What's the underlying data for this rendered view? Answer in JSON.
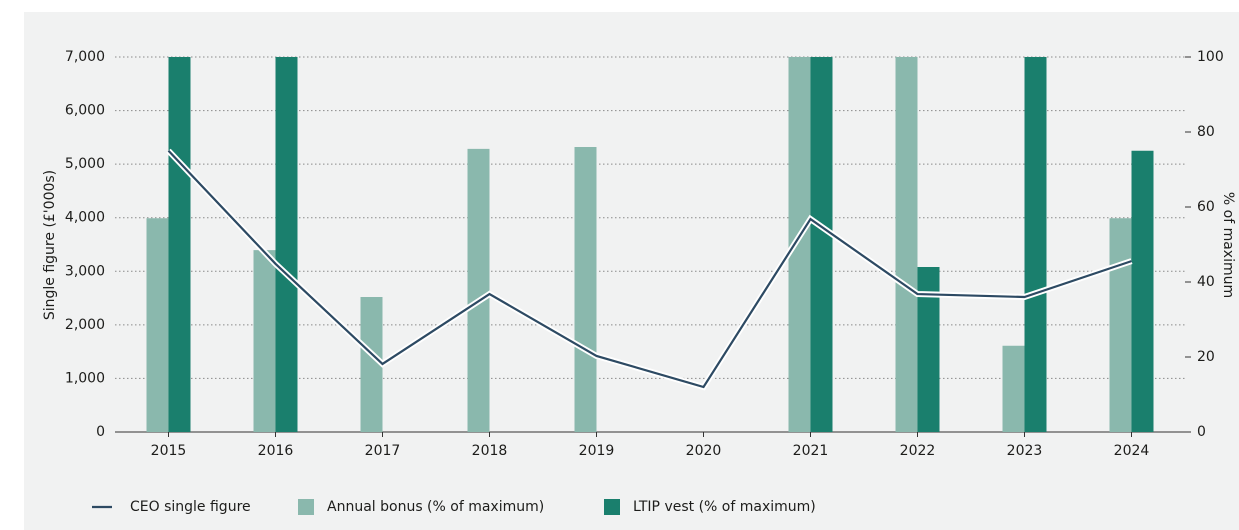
{
  "chart_data": {
    "type": "bar-line",
    "y_label": "Single figure (£'000s)",
    "y2_label": "% of maximum",
    "categories": [
      "2015",
      "2016",
      "2017",
      "2018",
      "2019",
      "2020",
      "2021",
      "2022",
      "2023",
      "2024"
    ],
    "series": [
      {
        "name": "CEO single figure",
        "type": "line",
        "color": "#2d4a63",
        "axis": "y",
        "values": [
          5250,
          3140,
          1270,
          2575,
          1420,
          840,
          3975,
          2575,
          2520,
          3190
        ]
      },
      {
        "name": "Annual bonus (% of maximum)",
        "type": "bar",
        "color": "#8ab8ad",
        "axis": "y2",
        "values": [
          57,
          48.5,
          36,
          75.5,
          76,
          0,
          100,
          100,
          23,
          57
        ]
      },
      {
        "name": "LTIP vest (% of maximum)",
        "type": "bar",
        "color": "#1a7f6d",
        "axis": "y2",
        "values": [
          100,
          100,
          0,
          0,
          0,
          0,
          100,
          44,
          100,
          75
        ]
      }
    ],
    "ylim": [
      0,
      7000
    ],
    "yticks": [
      0,
      {
        "value": 1000,
        "label": "1,000"
      },
      {
        "value": 2000,
        "label": "2,000"
      },
      {
        "value": 3000,
        "label": "3,000"
      },
      {
        "value": 4000,
        "label": "4,000"
      },
      {
        "value": 5000,
        "label": "5,000"
      },
      {
        "value": 6000,
        "label": "6,000"
      },
      {
        "value": 7000,
        "label": "7,000"
      }
    ],
    "y2lim": [
      0,
      100
    ],
    "y2ticks": [
      0,
      20,
      40,
      60,
      80,
      100
    ],
    "grid": true,
    "legend": "bottom"
  }
}
